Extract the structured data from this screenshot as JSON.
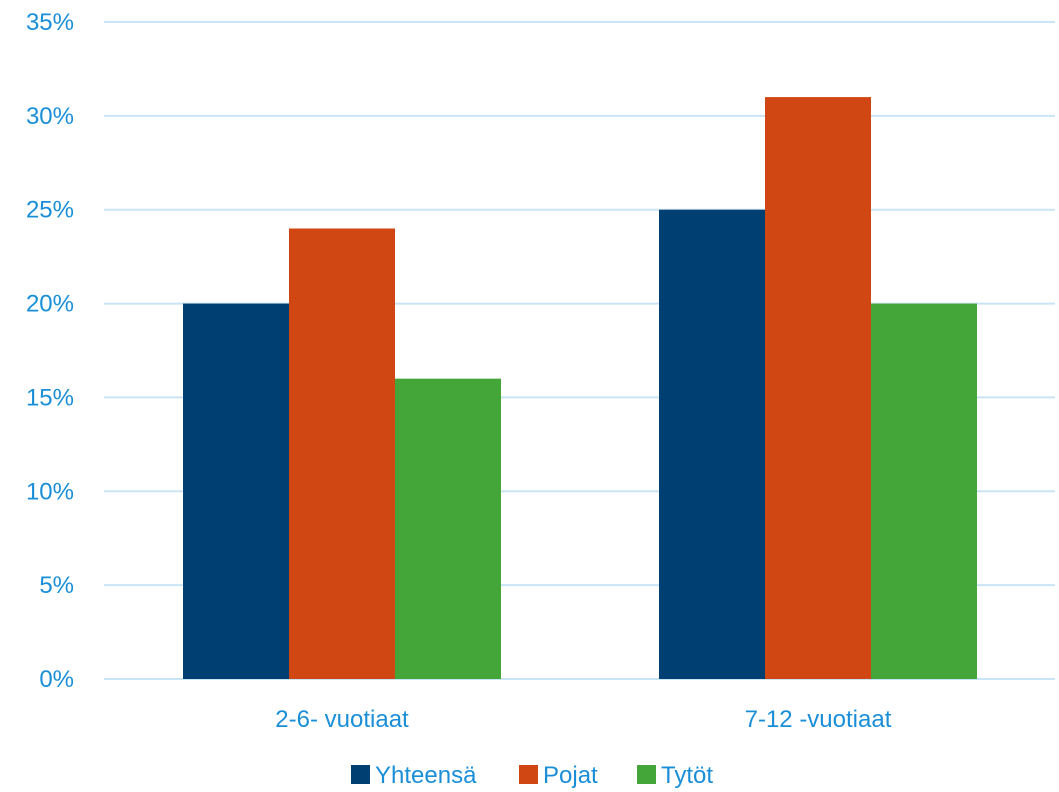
{
  "chart_data": {
    "type": "bar",
    "title": "",
    "xlabel": "",
    "ylabel": "",
    "categories": [
      "2-6- vuotiaat",
      "7-12 -vuotiaat"
    ],
    "series": [
      {
        "name": "Yhteensä",
        "values": [
          20,
          25
        ],
        "color": "#003f72"
      },
      {
        "name": "Pojat",
        "values": [
          24,
          31
        ],
        "color": "#d04714"
      },
      {
        "name": "Tytöt",
        "values": [
          16,
          20
        ],
        "color": "#44a638"
      }
    ],
    "ylim": [
      0,
      35
    ],
    "yticks": [
      0,
      5,
      10,
      15,
      20,
      25,
      30,
      35
    ],
    "ytick_labels": [
      "0%",
      "5%",
      "10%",
      "15%",
      "20%",
      "25%",
      "30%",
      "35%"
    ],
    "grid": true,
    "legend_position": "bottom-center",
    "text_color": "#1a8fd8",
    "grid_color": "#c9e4f5"
  }
}
